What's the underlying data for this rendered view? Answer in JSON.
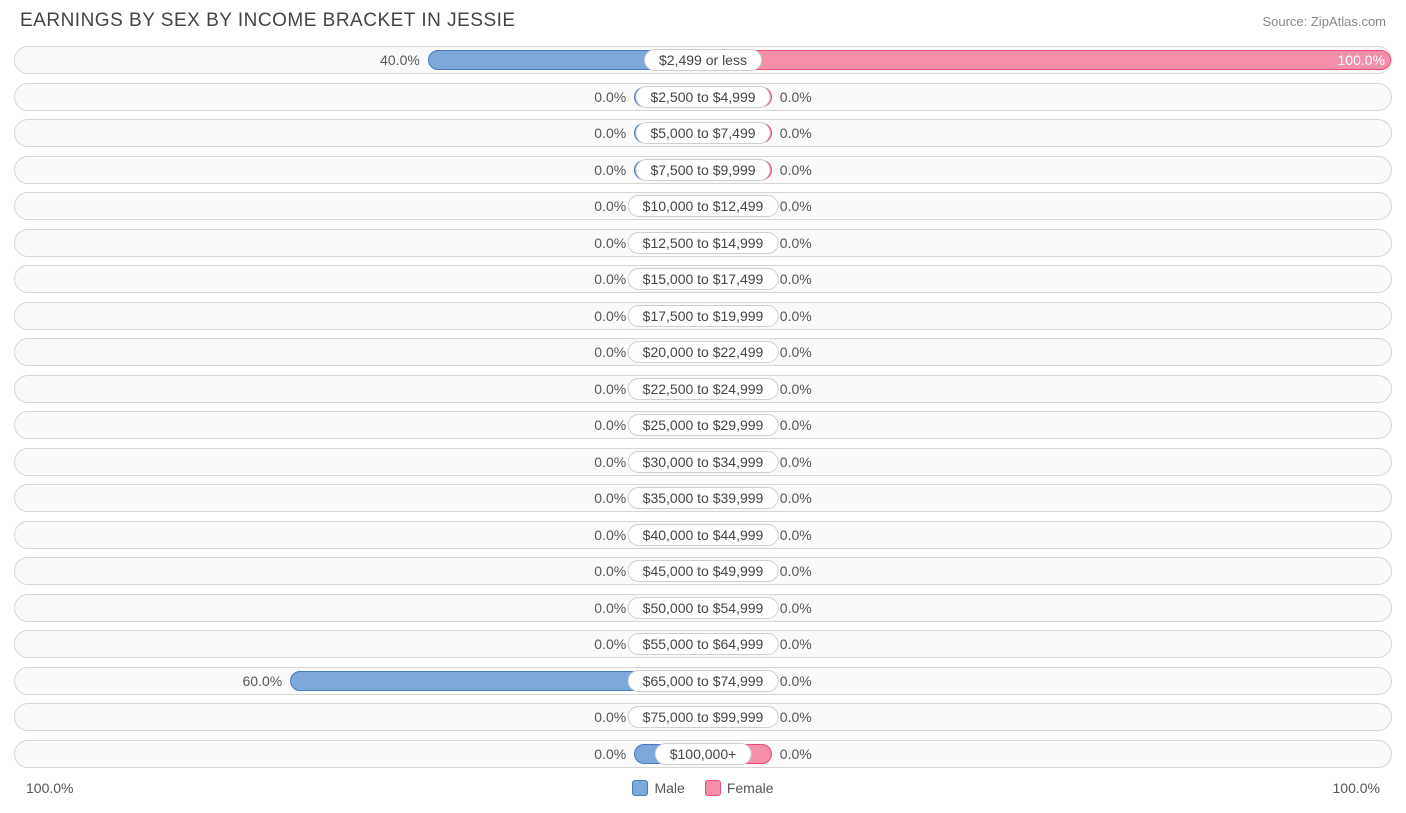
{
  "title": "EARNINGS BY SEX BY INCOME BRACKET IN JESSIE",
  "source": "Source: ZipAtlas.com",
  "axis_left_label": "100.0%",
  "axis_right_label": "100.0%",
  "legend": {
    "male": "Male",
    "female": "Female"
  },
  "colors": {
    "male_fill": "#7da8d9",
    "male_stroke": "#4a7bc0",
    "female_fill": "#f48fa9",
    "female_stroke": "#e94a78",
    "row_bg": "#fafafa",
    "row_border": "#d6d6d6",
    "label_bg": "#ffffff",
    "label_border": "#cfcfcf",
    "text": "#555"
  },
  "chart": {
    "type": "diverging-bar",
    "min_bar_pct": 10,
    "max_scale_pct": 100,
    "rows": [
      {
        "bracket": "$2,499 or less",
        "male": 40.0,
        "female": 100.0
      },
      {
        "bracket": "$2,500 to $4,999",
        "male": 0.0,
        "female": 0.0
      },
      {
        "bracket": "$5,000 to $7,499",
        "male": 0.0,
        "female": 0.0
      },
      {
        "bracket": "$7,500 to $9,999",
        "male": 0.0,
        "female": 0.0
      },
      {
        "bracket": "$10,000 to $12,499",
        "male": 0.0,
        "female": 0.0
      },
      {
        "bracket": "$12,500 to $14,999",
        "male": 0.0,
        "female": 0.0
      },
      {
        "bracket": "$15,000 to $17,499",
        "male": 0.0,
        "female": 0.0
      },
      {
        "bracket": "$17,500 to $19,999",
        "male": 0.0,
        "female": 0.0
      },
      {
        "bracket": "$20,000 to $22,499",
        "male": 0.0,
        "female": 0.0
      },
      {
        "bracket": "$22,500 to $24,999",
        "male": 0.0,
        "female": 0.0
      },
      {
        "bracket": "$25,000 to $29,999",
        "male": 0.0,
        "female": 0.0
      },
      {
        "bracket": "$30,000 to $34,999",
        "male": 0.0,
        "female": 0.0
      },
      {
        "bracket": "$35,000 to $39,999",
        "male": 0.0,
        "female": 0.0
      },
      {
        "bracket": "$40,000 to $44,999",
        "male": 0.0,
        "female": 0.0
      },
      {
        "bracket": "$45,000 to $49,999",
        "male": 0.0,
        "female": 0.0
      },
      {
        "bracket": "$50,000 to $54,999",
        "male": 0.0,
        "female": 0.0
      },
      {
        "bracket": "$55,000 to $64,999",
        "male": 0.0,
        "female": 0.0
      },
      {
        "bracket": "$65,000 to $74,999",
        "male": 60.0,
        "female": 0.0
      },
      {
        "bracket": "$75,000 to $99,999",
        "male": 0.0,
        "female": 0.0
      },
      {
        "bracket": "$100,000+",
        "male": 0.0,
        "female": 0.0
      }
    ]
  }
}
